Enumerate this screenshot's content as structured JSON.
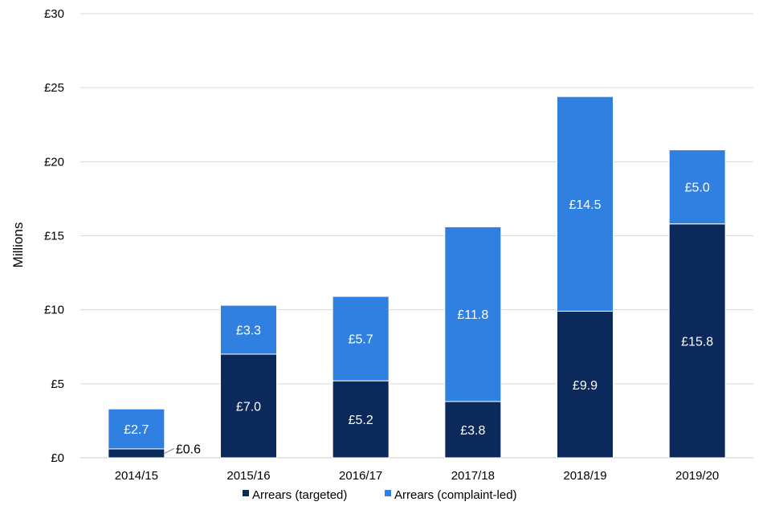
{
  "chart_data": {
    "type": "bar",
    "stacked": true,
    "title": "",
    "xlabel": "",
    "ylabel": "Millions",
    "ylim": [
      0,
      30
    ],
    "yticks": [
      0,
      5,
      10,
      15,
      20,
      25,
      30
    ],
    "ytick_labels": [
      "£0",
      "£5",
      "£10",
      "£15",
      "£20",
      "£25",
      "£30"
    ],
    "grid": true,
    "categories": [
      "2014/15",
      "2015/16",
      "2016/17",
      "2017/18",
      "2018/19",
      "2019/20"
    ],
    "series": [
      {
        "name": "Arrears (targeted)",
        "color": "#0b2a5b",
        "values": [
          0.6,
          7.0,
          5.2,
          3.8,
          9.9,
          15.8
        ],
        "labels": [
          "£0.6",
          "£7.0",
          "£5.2",
          "£3.8",
          "£9.9",
          "£15.8"
        ]
      },
      {
        "name": "Arrears (complaint-led)",
        "color": "#2f80e0",
        "values": [
          2.7,
          3.3,
          5.7,
          11.8,
          14.5,
          5.0
        ],
        "labels": [
          "£2.7",
          "£3.3",
          "£5.7",
          "£11.8",
          "£14.5",
          "£5.0"
        ]
      }
    ],
    "legend_position": "bottom-center"
  }
}
